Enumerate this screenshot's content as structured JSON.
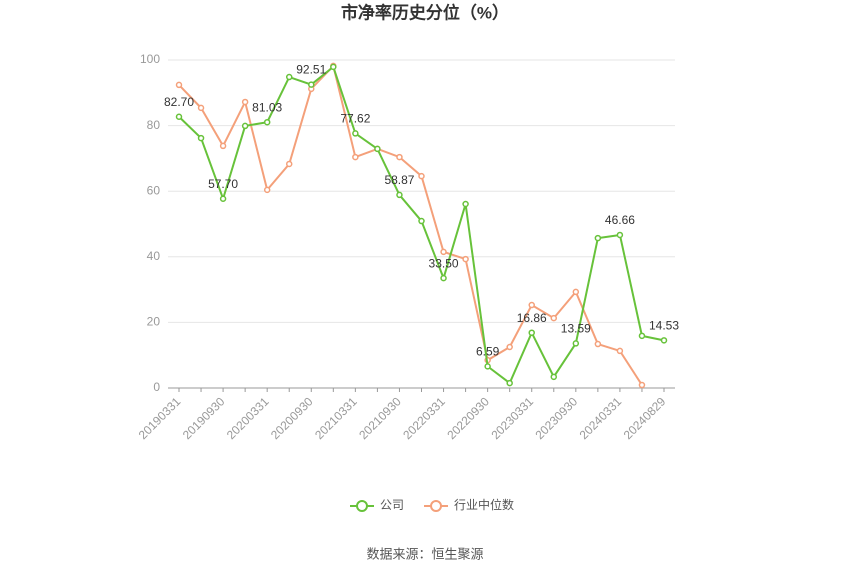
{
  "chart_data": {
    "type": "line",
    "title": "市净率历史分位（%）",
    "categories": [
      "20190331",
      null,
      "20190930",
      null,
      "20200331",
      null,
      "20200930",
      null,
      "20210331",
      null,
      "20210930",
      null,
      "20220331",
      null,
      "20220930",
      null,
      "20230331",
      null,
      "20230930",
      null,
      "20240331",
      null,
      "20240829"
    ],
    "series": [
      {
        "name": "公司",
        "color": "#67c23a",
        "values": [
          82.7,
          76.2,
          57.7,
          79.9,
          81.03,
          94.8,
          92.51,
          97.9,
          77.62,
          72.9,
          58.87,
          50.9,
          33.5,
          56.1,
          6.59,
          1.5,
          16.86,
          3.4,
          13.59,
          45.7,
          46.66,
          15.9,
          14.53
        ],
        "value_labels": [
          "82.70",
          null,
          "57.70",
          null,
          "81.03",
          null,
          "92.51",
          null,
          "77.62",
          null,
          "58.87",
          null,
          "33.50",
          null,
          "6.59",
          null,
          "16.86",
          null,
          "13.59",
          null,
          "46.66",
          null,
          "14.53"
        ]
      },
      {
        "name": "行业中位数",
        "color": "#f4a07a",
        "values": [
          92.4,
          85.4,
          73.8,
          87.2,
          60.4,
          68.3,
          91.2,
          98.2,
          70.4,
          72.9,
          70.4,
          64.6,
          41.5,
          39.3,
          8.5,
          12.5,
          25.3,
          21.3,
          29.3,
          13.4,
          11.3,
          0.9,
          null
        ]
      }
    ],
    "ylim": [
      0,
      100
    ],
    "yticks": [
      0,
      20,
      40,
      60,
      80,
      100
    ],
    "grid": true,
    "legend": "bottom",
    "source": "数据来源：恒生聚源"
  }
}
